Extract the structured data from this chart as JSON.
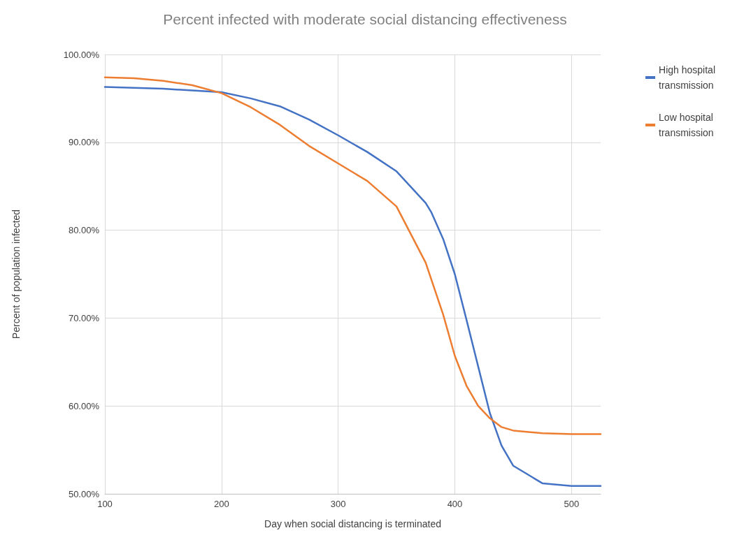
{
  "chart_data": {
    "type": "line",
    "title": "Percent infected with moderate social distancing effectiveness",
    "xlabel": "Day when social distancing is terminated",
    "ylabel": "Percent of population infected",
    "xlim": [
      100,
      525
    ],
    "xticks": [
      100,
      200,
      300,
      400,
      500
    ],
    "ylim": [
      50,
      100
    ],
    "yticks": [
      {
        "value": 50,
        "label": "50.00%"
      },
      {
        "value": 60,
        "label": "60.00%"
      },
      {
        "value": 70,
        "label": "70.00%"
      },
      {
        "value": 80,
        "label": "80.00%"
      },
      {
        "value": 90,
        "label": "90.00%"
      },
      {
        "value": 100,
        "label": "100.00%"
      }
    ],
    "grid": true,
    "legend": "top right",
    "marker": "none",
    "line_style": "solid",
    "series": [
      {
        "name": "High hospital transmission",
        "color": "#4472c4",
        "x": [
          100,
          125,
          150,
          175,
          200,
          225,
          250,
          275,
          300,
          325,
          350,
          375,
          380,
          390,
          400,
          410,
          420,
          430,
          440,
          450,
          475,
          500,
          525
        ],
        "values": [
          96.3,
          96.2,
          96.1,
          95.9,
          95.7,
          95.0,
          94.1,
          92.6,
          90.8,
          88.9,
          86.7,
          83.1,
          82.0,
          79.0,
          75.0,
          69.8,
          64.5,
          59.2,
          55.5,
          53.2,
          51.2,
          50.9,
          50.9
        ]
      },
      {
        "name": "Low hospital transmission",
        "color": "#ed7d31",
        "x": [
          100,
          125,
          150,
          175,
          200,
          225,
          250,
          275,
          300,
          325,
          350,
          375,
          390,
          400,
          410,
          420,
          430,
          440,
          450,
          475,
          500,
          525
        ],
        "values": [
          97.4,
          97.3,
          97.0,
          96.5,
          95.6,
          94.0,
          92.0,
          89.6,
          87.6,
          85.6,
          82.7,
          76.3,
          70.4,
          65.7,
          62.3,
          60.0,
          58.6,
          57.6,
          57.2,
          56.9,
          56.8,
          56.8
        ]
      }
    ]
  }
}
